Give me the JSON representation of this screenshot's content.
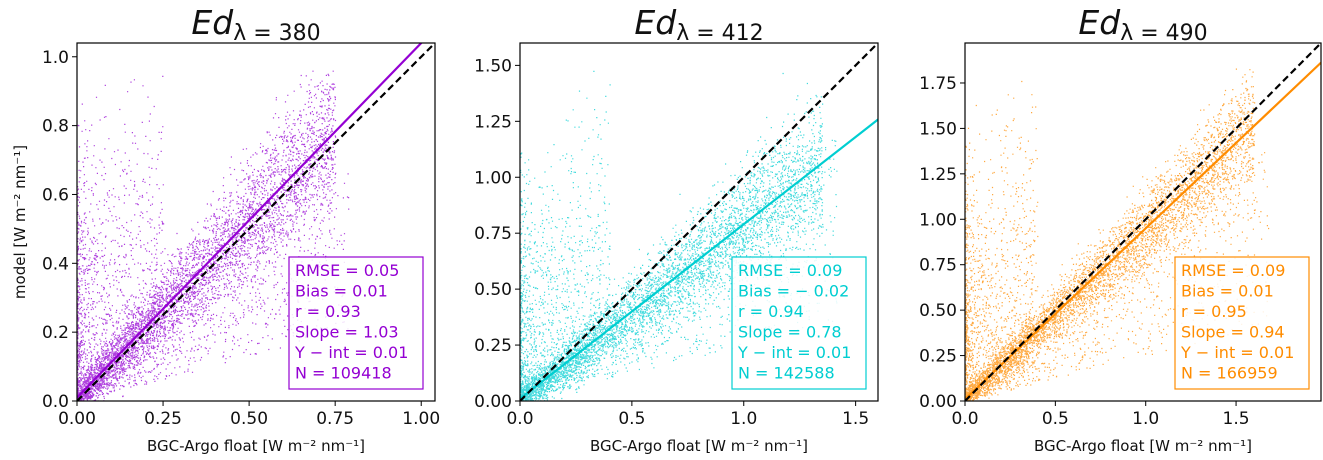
{
  "chart_data": [
    {
      "type": "scatter",
      "title": "Ed_{λ = 380}",
      "title_base": "Ed",
      "title_sub": "λ = 380",
      "xlabel": "BGC-Argo float [W m⁻² nm⁻¹]",
      "ylabel": "model [W m⁻² nm⁻¹]",
      "xlim": [
        0.0,
        1.04
      ],
      "ylim": [
        0.0,
        1.04
      ],
      "xticks": [
        0.0,
        0.25,
        0.5,
        0.75,
        1.0
      ],
      "xtick_labels": [
        "0.00",
        "0.25",
        "0.50",
        "0.75",
        "1.00"
      ],
      "yticks": [
        0.0,
        0.2,
        0.4,
        0.6,
        0.8,
        1.0
      ],
      "ytick_labels": [
        "0.0",
        "0.2",
        "0.4",
        "0.6",
        "0.8",
        "1.0"
      ],
      "color": "#9400d3",
      "regression": {
        "slope": 1.03,
        "intercept": 0.01
      },
      "one_to_one_line": true,
      "point_cloud": {
        "x_max": 0.75,
        "x_noise_max": 0.25,
        "spread": 0.12,
        "noise_y_max": 0.9
      },
      "stats": {
        "rmse": "RMSE = 0.05",
        "bias": "Bias = 0.01",
        "r": "r = 0.93",
        "slope": "Slope = 1.03",
        "yint": "Y − int = 0.01",
        "n": "N = 109418"
      }
    },
    {
      "type": "scatter",
      "title": "Ed_{λ = 412}",
      "title_base": "Ed",
      "title_sub": "λ = 412",
      "xlabel": "BGC-Argo float [W m⁻² nm⁻¹]",
      "ylabel": "",
      "xlim": [
        0.0,
        1.6
      ],
      "ylim": [
        0.0,
        1.6
      ],
      "xticks": [
        0.0,
        0.5,
        1.0,
        1.5
      ],
      "xtick_labels": [
        "0.0",
        "0.5",
        "1.0",
        "1.5"
      ],
      "yticks": [
        0.0,
        0.25,
        0.5,
        0.75,
        1.0,
        1.25,
        1.5
      ],
      "ytick_labels": [
        "0.00",
        "0.25",
        "0.50",
        "0.75",
        "1.00",
        "1.25",
        "1.50"
      ],
      "color": "#00ced1",
      "regression": {
        "slope": 0.78,
        "intercept": 0.01
      },
      "one_to_one_line": true,
      "point_cloud": {
        "x_max": 1.35,
        "x_noise_max": 0.4,
        "spread": 0.16,
        "noise_y_max": 1.18
      },
      "stats": {
        "rmse": "RMSE = 0.09",
        "bias": "Bias = − 0.02",
        "r": "r = 0.94",
        "slope": "Slope = 0.78",
        "yint": "Y − int = 0.01",
        "n": "N = 142588"
      }
    },
    {
      "type": "scatter",
      "title": "Ed_{λ = 490}",
      "title_base": "Ed",
      "title_sub": "λ = 490",
      "xlabel": "BGC-Argo float [W m⁻² nm⁻¹]",
      "ylabel": "",
      "xlim": [
        0.0,
        1.97
      ],
      "ylim": [
        0.0,
        1.97
      ],
      "xticks": [
        0.0,
        0.5,
        1.0,
        1.5
      ],
      "xtick_labels": [
        "0.0",
        "0.5",
        "1.0",
        "1.5"
      ],
      "yticks": [
        0.0,
        0.25,
        0.5,
        0.75,
        1.0,
        1.25,
        1.5,
        1.75
      ],
      "ytick_labels": [
        "0.00",
        "0.25",
        "0.50",
        "0.75",
        "1.00",
        "1.25",
        "1.50",
        "1.75"
      ],
      "color": "#ff8c00",
      "regression": {
        "slope": 0.94,
        "intercept": 0.01
      },
      "one_to_one_line": true,
      "point_cloud": {
        "x_max": 1.6,
        "x_noise_max": 0.4,
        "spread": 0.16,
        "noise_y_max": 1.6
      },
      "stats": {
        "rmse": "RMSE = 0.09",
        "bias": "Bias = 0.01",
        "r": "r = 0.95",
        "slope": "Slope = 0.94",
        "yint": "Y − int = 0.01",
        "n": "N = 166959"
      }
    }
  ]
}
